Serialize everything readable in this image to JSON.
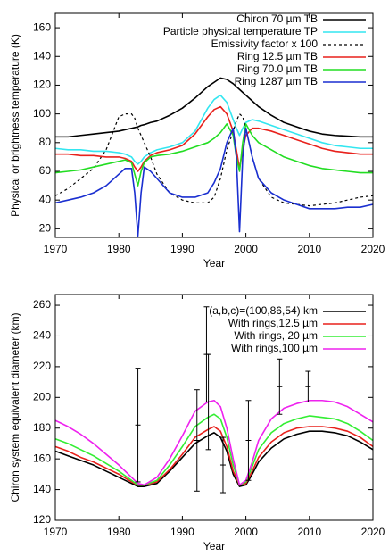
{
  "chart_data": [
    {
      "type": "line",
      "xlabel": "Year",
      "ylabel": "Physical or brightness temperature (K)",
      "xlim": [
        1970,
        2020
      ],
      "ylim": [
        14,
        170
      ],
      "xticks": [
        1970,
        1980,
        1990,
        2000,
        2010,
        2020
      ],
      "yticks": [
        20,
        40,
        60,
        80,
        100,
        120,
        140,
        160
      ],
      "legend": "upper right",
      "x": [
        1970,
        1972,
        1974,
        1976,
        1978,
        1980,
        1981,
        1982,
        1982.5,
        1983,
        1983.5,
        1984,
        1985,
        1986,
        1988,
        1990,
        1992,
        1994,
        1995,
        1996,
        1997,
        1998,
        1998.5,
        1999,
        1999.5,
        2000,
        2001,
        2002,
        2004,
        2006,
        2008,
        2010,
        2012,
        2014,
        2016,
        2018,
        2020
      ],
      "series": [
        {
          "name": "Chiron 70 µm TB",
          "color": "#000000",
          "values": [
            84,
            84,
            85,
            86,
            87,
            88,
            89,
            90,
            90.5,
            91,
            92,
            92.5,
            94,
            95,
            99,
            104,
            111,
            119,
            122,
            125,
            124,
            121,
            119,
            117,
            115,
            113,
            109,
            105,
            99,
            94,
            91,
            88,
            86,
            85,
            84.5,
            84,
            84
          ]
        },
        {
          "name": "Particle physical temperature TP",
          "color": "#33e6f0",
          "values": [
            76,
            75,
            75,
            74,
            74,
            73,
            72,
            70,
            67,
            65,
            67,
            70,
            73,
            75,
            77,
            80,
            88,
            104,
            110,
            113,
            108,
            96,
            90,
            85,
            90,
            94,
            96,
            95,
            92,
            89,
            86,
            83,
            80,
            78,
            77,
            76,
            76
          ]
        },
        {
          "name": "Emissivity factor x 100",
          "color": "#000000",
          "dashed": true,
          "values": [
            43,
            48,
            55,
            62,
            75,
            98,
            100,
            100,
            97,
            90,
            85,
            80,
            70,
            58,
            45,
            40,
            38,
            38,
            42,
            55,
            75,
            88,
            95,
            100,
            98,
            90,
            70,
            55,
            42,
            38,
            37,
            36,
            37,
            38,
            40,
            42,
            43
          ]
        },
        {
          "name": "Ring 12.5 µm TB",
          "color": "#e8211c",
          "values": [
            72,
            72,
            71,
            71,
            70,
            70,
            69,
            67,
            63,
            60,
            63,
            67,
            71,
            73,
            75,
            78,
            86,
            98,
            103,
            105,
            100,
            88,
            75,
            62,
            75,
            85,
            90,
            90,
            88,
            85,
            82,
            79,
            76,
            74,
            73,
            72,
            72
          ]
        },
        {
          "name": "Ring 70.0 µm TB",
          "color": "#22dd22",
          "values": [
            59,
            60,
            61,
            63,
            65,
            67,
            68,
            66,
            58,
            50,
            60,
            66,
            70,
            71,
            72,
            74,
            77,
            80,
            83,
            87,
            93,
            85,
            70,
            60,
            80,
            93,
            85,
            80,
            75,
            70,
            67,
            64,
            62,
            61,
            60,
            59,
            59
          ]
        },
        {
          "name": "Ring 1287 µm TB",
          "color": "#1a2fd0",
          "values": [
            38,
            40,
            42,
            45,
            50,
            58,
            62,
            62,
            45,
            15,
            45,
            63,
            60,
            55,
            45,
            42,
            42,
            45,
            52,
            62,
            80,
            90,
            70,
            18,
            70,
            90,
            70,
            55,
            45,
            40,
            37,
            34,
            34,
            34,
            35,
            35,
            37
          ]
        }
      ]
    },
    {
      "type": "line",
      "xlabel": "Year",
      "ylabel": "Chiron system equivalent diameter (km)",
      "xlim": [
        1970,
        2020
      ],
      "ylim": [
        120,
        267
      ],
      "xticks": [
        1970,
        1980,
        1990,
        2000,
        2010,
        2020
      ],
      "yticks": [
        120,
        140,
        160,
        180,
        200,
        220,
        240,
        260
      ],
      "legend": "upper right",
      "x": [
        1970,
        1972,
        1974,
        1976,
        1978,
        1980,
        1982,
        1983,
        1984,
        1986,
        1988,
        1990,
        1992,
        1994,
        1995,
        1996,
        1997,
        1998,
        1999,
        2000,
        2001,
        2002,
        2004,
        2006,
        2008,
        2010,
        2012,
        2014,
        2016,
        2018,
        2020
      ],
      "series": [
        {
          "name": "(a,b,c)=(100,86,54) km",
          "color": "#000000",
          "values": [
            165,
            162,
            159,
            156,
            152,
            148,
            144,
            142,
            142,
            144,
            152,
            161,
            170,
            175,
            177,
            174,
            165,
            150,
            142,
            143,
            150,
            158,
            167,
            173,
            176,
            178,
            178,
            177,
            175,
            171,
            166
          ]
        },
        {
          "name": "With rings,12.5 µm",
          "color": "#e8211c",
          "values": [
            168,
            165,
            161,
            158,
            154,
            150,
            145,
            143,
            143,
            145,
            153,
            163,
            174,
            179,
            181,
            178,
            168,
            152,
            143,
            144,
            152,
            161,
            171,
            177,
            180,
            181,
            181,
            180,
            178,
            174,
            168
          ]
        },
        {
          "name": "With rings, 20 µm",
          "color": "#33ee33",
          "values": [
            173,
            170,
            166,
            162,
            157,
            152,
            146,
            143,
            143,
            146,
            156,
            168,
            181,
            187,
            189,
            186,
            174,
            156,
            143,
            145,
            155,
            166,
            177,
            183,
            186,
            188,
            187,
            186,
            183,
            178,
            172
          ]
        },
        {
          "name": "With rings,100 µm",
          "color": "#ee22ee",
          "values": [
            185,
            181,
            176,
            170,
            163,
            156,
            148,
            144,
            143,
            148,
            160,
            175,
            191,
            197,
            198,
            194,
            180,
            160,
            143,
            146,
            158,
            172,
            186,
            193,
            196,
            198,
            198,
            197,
            194,
            189,
            184
          ]
        }
      ],
      "errorbars": {
        "x": [
          1983,
          1992.3,
          1993.8,
          1994.1,
          1996.4,
          2000.4,
          2005.3,
          2009.8
        ],
        "values": [
          182,
          172,
          228,
          197,
          156,
          172,
          207,
          207
        ],
        "errors": [
          37,
          33,
          31,
          31,
          18,
          26,
          18,
          10
        ]
      }
    }
  ]
}
